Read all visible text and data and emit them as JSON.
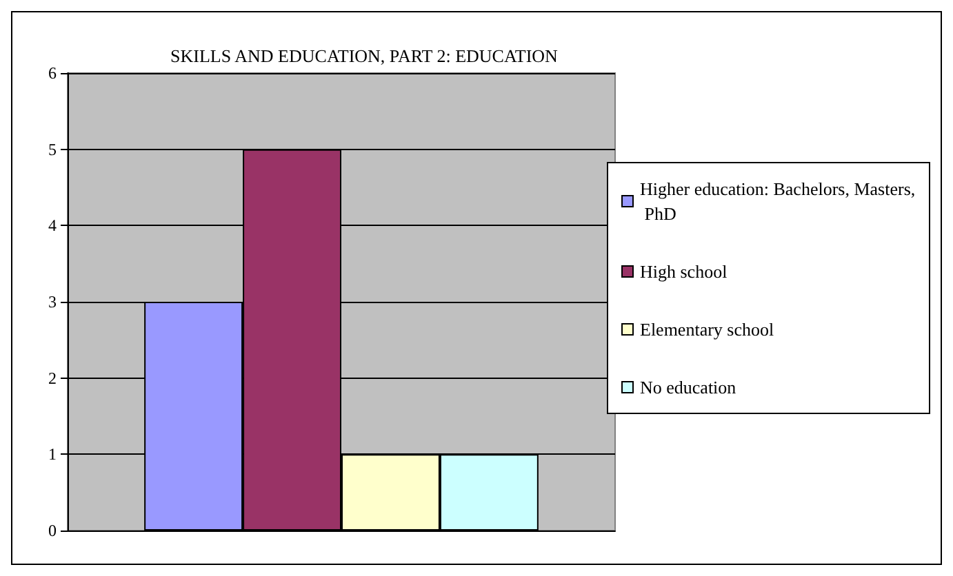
{
  "chart_data": {
    "type": "bar",
    "title": "SKILLS AND EDUCATION, PART 2: EDUCATION",
    "categories": [
      null
    ],
    "series": [
      {
        "name": "Higher education: Bachelors, Masters, PhD",
        "color": "#9999ff",
        "values": [
          3
        ]
      },
      {
        "name": "High school",
        "color": "#993366",
        "values": [
          5
        ]
      },
      {
        "name": "Elementary school",
        "color": "#ffffcc",
        "values": [
          1
        ]
      },
      {
        "name": "No education",
        "color": "#ccffff",
        "values": [
          1
        ]
      }
    ],
    "ylim": [
      0,
      6
    ],
    "yticks": [
      0,
      1,
      2,
      3,
      4,
      5,
      6
    ],
    "grid": "y",
    "legend": "right"
  }
}
